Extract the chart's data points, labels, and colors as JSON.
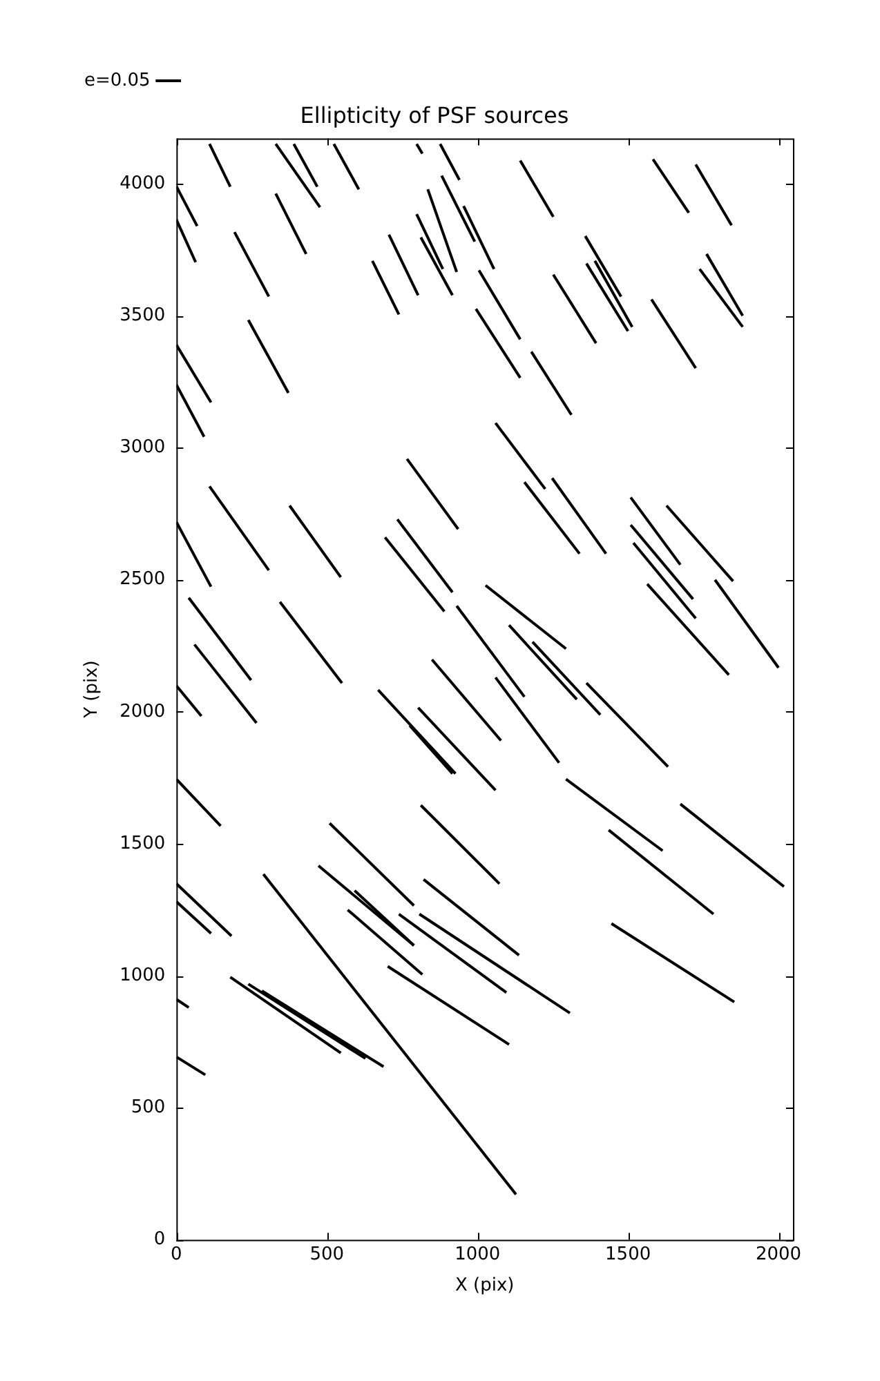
{
  "chart_data": {
    "type": "line",
    "title": "Ellipticity of PSF sources",
    "xlabel": "X (pix)",
    "ylabel": "Y (pix)",
    "xlim": [
      0,
      2048
    ],
    "ylim": [
      0,
      4172
    ],
    "xticks": [
      0,
      500,
      1000,
      1500,
      2000
    ],
    "yticks": [
      0,
      500,
      1000,
      1500,
      2000,
      2500,
      3000,
      3500,
      4000
    ],
    "grid": false,
    "legend": "top left",
    "marker": "none",
    "line_style": "solid",
    "series": [
      {
        "name": "e=0.05",
        "color": "#000000",
        "x": [
          0,
          69
        ],
        "values": [
          3990,
          3840
        ]
      },
      {
        "color": "#000000",
        "x": [
          0,
          64
        ],
        "values": [
          3864,
          3703
        ]
      },
      {
        "color": "#000000",
        "x": [
          110,
          179
        ],
        "values": [
          4151,
          3989
        ]
      },
      {
        "color": "#000000",
        "x": [
          330,
          477
        ],
        "values": [
          4151,
          3911
        ]
      },
      {
        "color": "#000000",
        "x": [
          390,
          468
        ],
        "values": [
          4151,
          3989
        ]
      },
      {
        "color": "#000000",
        "x": [
          523,
          606
        ],
        "values": [
          4151,
          3979
        ]
      },
      {
        "color": "#000000",
        "x": [
          798,
          817
        ],
        "values": [
          4151,
          4114
        ]
      },
      {
        "color": "#000000",
        "x": [
          876,
          940
        ],
        "values": [
          4151,
          4015
        ]
      },
      {
        "color": "#000000",
        "x": [
          330,
          431
        ],
        "values": [
          3963,
          3734
        ]
      },
      {
        "color": "#000000",
        "x": [
          193,
          307
        ],
        "values": [
          3817,
          3573
        ]
      },
      {
        "color": "#000000",
        "x": [
          798,
          885
        ],
        "values": [
          3885,
          3677
        ]
      },
      {
        "color": "#000000",
        "x": [
          812,
          917
        ],
        "values": [
          3797,
          3578
        ]
      },
      {
        "color": "#000000",
        "x": [
          835,
          931
        ],
        "values": [
          3979,
          3666
        ]
      },
      {
        "color": "#000000",
        "x": [
          881,
          991
        ],
        "values": [
          4031,
          3781
        ]
      },
      {
        "color": "#000000",
        "x": [
          954,
          1055
        ],
        "values": [
          3916,
          3677
        ]
      },
      {
        "color": "#000000",
        "x": [
          706,
          803
        ],
        "values": [
          3807,
          3578
        ]
      },
      {
        "color": "#000000",
        "x": [
          651,
          739
        ],
        "values": [
          3708,
          3505
        ]
      },
      {
        "color": "#000000",
        "x": [
          1005,
          1142
        ],
        "values": [
          3672,
          3411
        ]
      },
      {
        "color": "#000000",
        "x": [
          995,
          1142
        ],
        "values": [
          3526,
          3265
        ]
      },
      {
        "color": "#000000",
        "x": [
          1142,
          1252
        ],
        "values": [
          4088,
          3875
        ]
      },
      {
        "color": "#000000",
        "x": [
          1583,
          1702
        ],
        "values": [
          4093,
          3890
        ]
      },
      {
        "color": "#000000",
        "x": [
          1725,
          1844
        ],
        "values": [
          4073,
          3843
        ]
      },
      {
        "color": "#000000",
        "x": [
          1358,
          1477
        ],
        "values": [
          3802,
          3573
        ]
      },
      {
        "color": "#000000",
        "x": [
          1390,
          1514
        ],
        "values": [
          3708,
          3458
        ]
      },
      {
        "color": "#000000",
        "x": [
          1362,
          1500
        ],
        "values": [
          3698,
          3442
        ]
      },
      {
        "color": "#000000",
        "x": [
          1761,
          1881
        ],
        "values": [
          3734,
          3500
        ]
      },
      {
        "color": "#000000",
        "x": [
          1738,
          1881
        ],
        "values": [
          3677,
          3458
        ]
      },
      {
        "color": "#000000",
        "x": [
          1252,
          1394
        ],
        "values": [
          3656,
          3396
        ]
      },
      {
        "color": "#000000",
        "x": [
          1578,
          1725
        ],
        "values": [
          3562,
          3302
        ]
      },
      {
        "color": "#000000",
        "x": [
          1179,
          1312
        ],
        "values": [
          3364,
          3125
        ]
      },
      {
        "color": "#000000",
        "x": [
          1060,
          1225
        ],
        "values": [
          3094,
          2844
        ]
      },
      {
        "color": "#000000",
        "x": [
          1156,
          1339
        ],
        "values": [
          2870,
          2599
        ]
      },
      {
        "color": "#000000",
        "x": [
          1248,
          1427
        ],
        "values": [
          2885,
          2599
        ]
      },
      {
        "color": "#000000",
        "x": [
          1509,
          1674
        ],
        "values": [
          2812,
          2557
        ]
      },
      {
        "color": "#000000",
        "x": [
          1628,
          1849
        ],
        "values": [
          2781,
          2495
        ]
      },
      {
        "color": "#000000",
        "x": [
          1509,
          1716
        ],
        "values": [
          2708,
          2427
        ]
      },
      {
        "color": "#000000",
        "x": [
          1518,
          1725
        ],
        "values": [
          2640,
          2354
        ]
      },
      {
        "color": "#000000",
        "x": [
          1564,
          1835
        ],
        "values": [
          2484,
          2140
        ]
      },
      {
        "color": "#000000",
        "x": [
          1789,
          2000
        ],
        "values": [
          2500,
          2167
        ]
      },
      {
        "color": "#000000",
        "x": [
          1027,
          1294
        ],
        "values": [
          2479,
          2239
        ]
      },
      {
        "color": "#000000",
        "x": [
          931,
          1156
        ],
        "values": [
          2401,
          2057
        ]
      },
      {
        "color": "#000000",
        "x": [
          1105,
          1330
        ],
        "values": [
          2328,
          2047
        ]
      },
      {
        "color": "#000000",
        "x": [
          1183,
          1408
        ],
        "values": [
          2265,
          1989
        ]
      },
      {
        "color": "#000000",
        "x": [
          1060,
          1271
        ],
        "values": [
          2130,
          1807
        ]
      },
      {
        "color": "#000000",
        "x": [
          1362,
          1633
        ],
        "values": [
          2109,
          1792
        ]
      },
      {
        "color": "#000000",
        "x": [
          1294,
          1615
        ],
        "values": [
          1745,
          1474
        ]
      },
      {
        "color": "#000000",
        "x": [
          1674,
          2018
        ],
        "values": [
          1651,
          1338
        ]
      },
      {
        "color": "#000000",
        "x": [
          1436,
          1784
        ],
        "values": [
          1552,
          1234
        ]
      },
      {
        "color": "#000000",
        "x": [
          1445,
          1853
        ],
        "values": [
          1198,
          901
        ]
      },
      {
        "color": "#000000",
        "x": [
          766,
          936
        ],
        "values": [
          2958,
          2692
        ]
      },
      {
        "color": "#000000",
        "x": [
          734,
          917
        ],
        "values": [
          2729,
          2453
        ]
      },
      {
        "color": "#000000",
        "x": [
          693,
          890
        ],
        "values": [
          2661,
          2380
        ]
      },
      {
        "color": "#000000",
        "x": [
          849,
          1078
        ],
        "values": [
          2198,
          1891
        ]
      },
      {
        "color": "#000000",
        "x": [
          670,
          927
        ],
        "values": [
          2083,
          1766
        ]
      },
      {
        "color": "#000000",
        "x": [
          775,
          917
        ],
        "values": [
          1948,
          1766
        ]
      },
      {
        "color": "#000000",
        "x": [
          803,
          1060
        ],
        "values": [
          2016,
          1703
        ]
      },
      {
        "color": "#000000",
        "x": [
          812,
          1073
        ],
        "values": [
          1646,
          1349
        ]
      },
      {
        "color": "#000000",
        "x": [
          509,
          789
        ],
        "values": [
          1578,
          1266
        ]
      },
      {
        "color": "#000000",
        "x": [
          472,
          789
        ],
        "values": [
          1417,
          1115
        ]
      },
      {
        "color": "#000000",
        "x": [
          592,
          789
        ],
        "values": [
          1323,
          1115
        ]
      },
      {
        "color": "#000000",
        "x": [
          569,
          817
        ],
        "values": [
          1250,
          1005
        ]
      },
      {
        "color": "#000000",
        "x": [
          739,
          1096
        ],
        "values": [
          1234,
          937
        ]
      },
      {
        "color": "#000000",
        "x": [
          807,
          1307
        ],
        "values": [
          1234,
          859
        ]
      },
      {
        "color": "#000000",
        "x": [
          821,
          1138
        ],
        "values": [
          1365,
          1078
        ]
      },
      {
        "color": "#000000",
        "x": [
          702,
          1105
        ],
        "values": [
          1036,
          740
        ]
      },
      {
        "color": "#000000",
        "x": [
          289,
          1128
        ],
        "values": [
          1385,
          172
        ]
      },
      {
        "color": "#000000",
        "x": [
          179,
          546
        ],
        "values": [
          995,
          708
        ]
      },
      {
        "color": "#000000",
        "x": [
          239,
          628
        ],
        "values": [
          969,
          687
        ]
      },
      {
        "color": "#000000",
        "x": [
          284,
          688
        ],
        "values": [
          943,
          656
        ]
      },
      {
        "color": "#000000",
        "x": [
          0,
          183
        ],
        "values": [
          1349,
          1151
        ]
      },
      {
        "color": "#000000",
        "x": [
          0,
          115
        ],
        "values": [
          1281,
          1161
        ]
      },
      {
        "color": "#000000",
        "x": [
          0,
          41
        ],
        "values": [
          911,
          880
        ]
      },
      {
        "color": "#000000",
        "x": [
          0,
          96
        ],
        "values": [
          693,
          625
        ]
      },
      {
        "color": "#000000",
        "x": [
          0,
          147
        ],
        "values": [
          1745,
          1568
        ]
      },
      {
        "color": "#000000",
        "x": [
          0,
          83
        ],
        "values": [
          2099,
          1984
        ]
      },
      {
        "color": "#000000",
        "x": [
          41,
          248
        ],
        "values": [
          2432,
          2120
        ]
      },
      {
        "color": "#000000",
        "x": [
          60,
          266
        ],
        "values": [
          2255,
          1958
        ]
      },
      {
        "color": "#000000",
        "x": [
          344,
          550
        ],
        "values": [
          2416,
          2109
        ]
      },
      {
        "color": "#000000",
        "x": [
          376,
          546
        ],
        "values": [
          2781,
          2510
        ]
      },
      {
        "color": "#000000",
        "x": [
          110,
          307
        ],
        "values": [
          2854,
          2536
        ]
      },
      {
        "color": "#000000",
        "x": [
          0,
          115
        ],
        "values": [
          2719,
          2474
        ]
      },
      {
        "color": "#000000",
        "x": [
          0,
          115
        ],
        "values": [
          3390,
          3172
        ]
      },
      {
        "color": "#000000",
        "x": [
          0,
          92
        ],
        "values": [
          3239,
          3042
        ]
      },
      {
        "color": "#000000",
        "x": [
          239,
          372
        ],
        "values": [
          3484,
          3208
        ]
      }
    ]
  }
}
